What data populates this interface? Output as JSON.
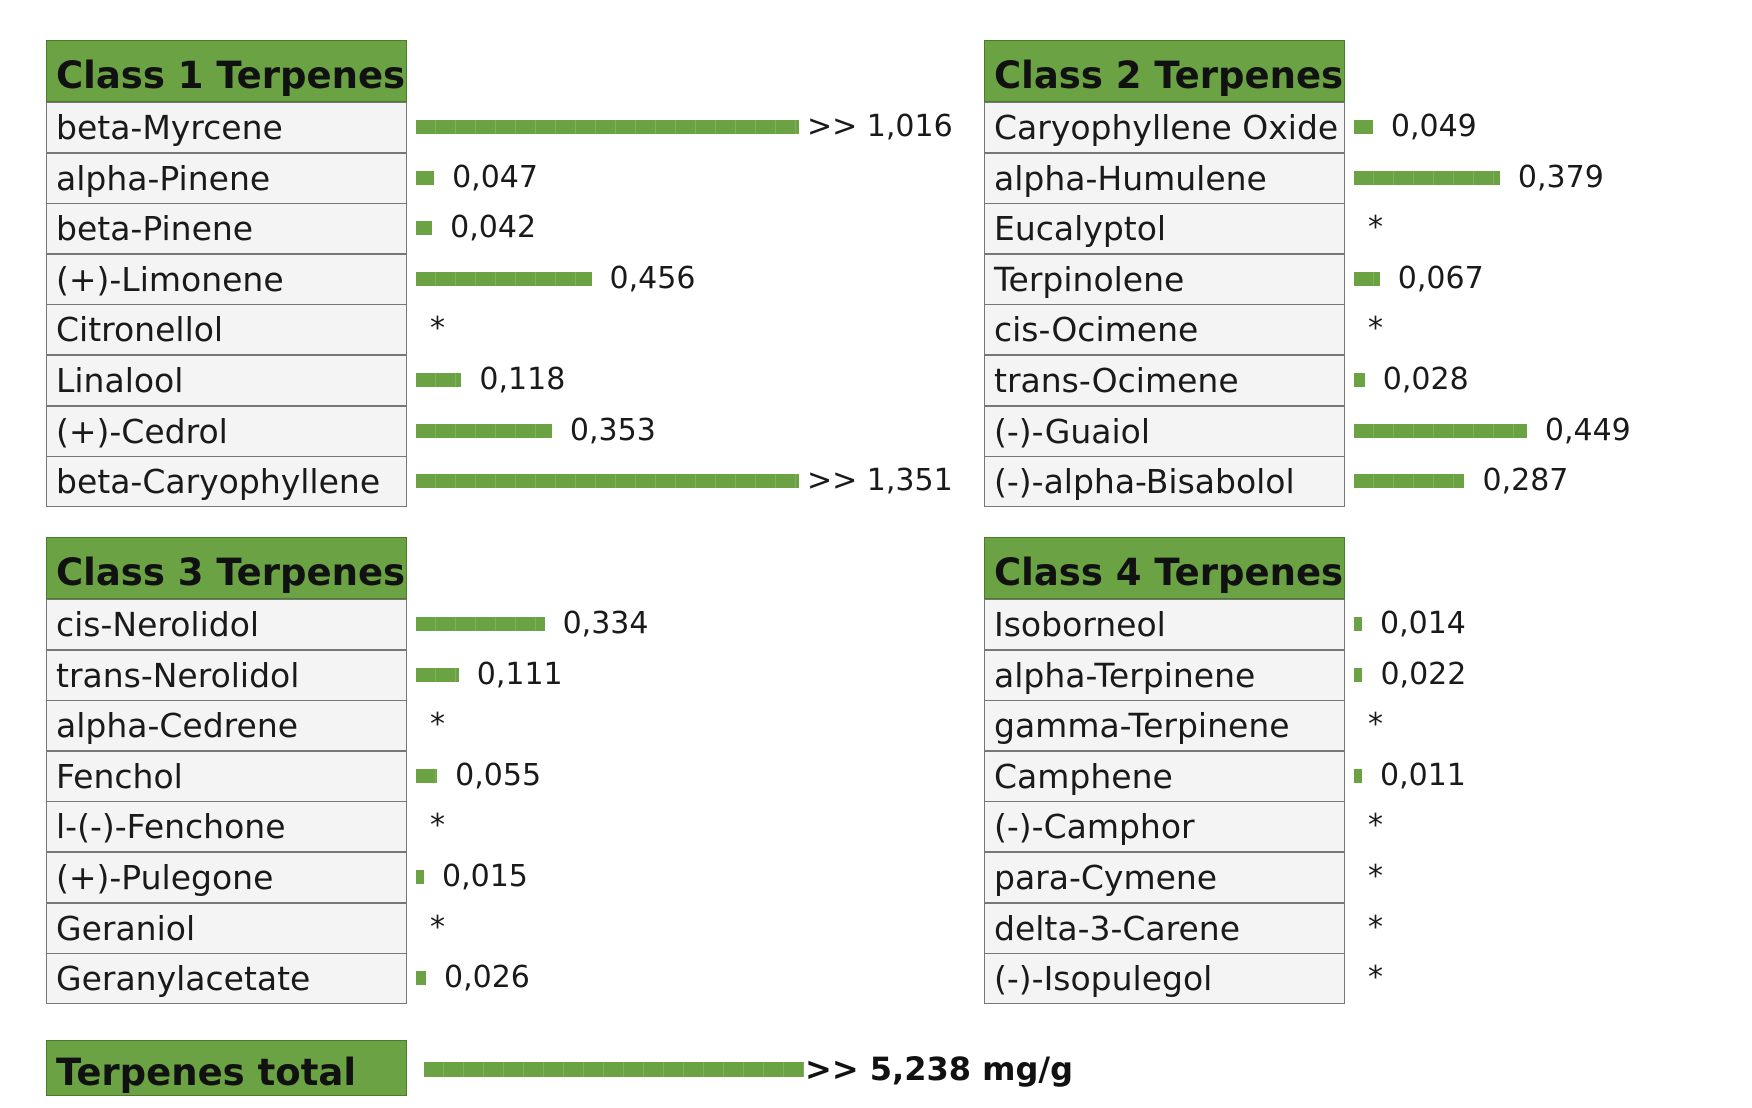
{
  "chart_data": {
    "type": "bar",
    "panels": [
      {
        "title": "Class 1 Terpenes",
        "items": [
          {
            "name": "beta-Myrcene",
            "value": 1.016,
            "label": ">> 1,016",
            "truncated": true
          },
          {
            "name": "alpha-Pinene",
            "value": 0.047,
            "label": "0,047"
          },
          {
            "name": "beta-Pinene",
            "value": 0.042,
            "label": "0,042"
          },
          {
            "name": "(+)-Limonene",
            "value": 0.456,
            "label": "0,456"
          },
          {
            "name": "Citronellol",
            "value": null,
            "label": "*"
          },
          {
            "name": "Linalool",
            "value": 0.118,
            "label": "0,118"
          },
          {
            "name": "(+)-Cedrol",
            "value": 0.353,
            "label": "0,353"
          },
          {
            "name": "beta-Caryophyllene",
            "value": 1.351,
            "label": ">> 1,351",
            "truncated": true
          }
        ]
      },
      {
        "title": "Class 2 Terpenes",
        "items": [
          {
            "name": "Caryophyllene Oxide",
            "value": 0.049,
            "label": "0,049"
          },
          {
            "name": "alpha-Humulene",
            "value": 0.379,
            "label": "0,379"
          },
          {
            "name": "Eucalyptol",
            "value": null,
            "label": "*"
          },
          {
            "name": "Terpinolene",
            "value": 0.067,
            "label": "0,067"
          },
          {
            "name": "cis-Ocimene",
            "value": null,
            "label": "*"
          },
          {
            "name": "trans-Ocimene",
            "value": 0.028,
            "label": "0,028"
          },
          {
            "name": "(-)-Guaiol",
            "value": 0.449,
            "label": "0,449"
          },
          {
            "name": "(-)-alpha-Bisabolol",
            "value": 0.287,
            "label": "0,287"
          }
        ]
      },
      {
        "title": "Class 3 Terpenes",
        "items": [
          {
            "name": "cis-Nerolidol",
            "value": 0.334,
            "label": "0,334"
          },
          {
            "name": "trans-Nerolidol",
            "value": 0.111,
            "label": "0,111"
          },
          {
            "name": "alpha-Cedrene",
            "value": null,
            "label": "*"
          },
          {
            "name": "Fenchol",
            "value": 0.055,
            "label": "0,055"
          },
          {
            "name": "l-(-)-Fenchone",
            "value": null,
            "label": "*"
          },
          {
            "name": "(+)-Pulegone",
            "value": 0.015,
            "label": "0,015"
          },
          {
            "name": "Geraniol",
            "value": null,
            "label": "*"
          },
          {
            "name": "Geranylacetate",
            "value": 0.026,
            "label": "0,026"
          }
        ]
      },
      {
        "title": "Class 4 Terpenes",
        "items": [
          {
            "name": "Isoborneol",
            "value": 0.014,
            "label": "0,014"
          },
          {
            "name": "alpha-Terpinene",
            "value": 0.022,
            "label": "0,022"
          },
          {
            "name": "gamma-Terpinene",
            "value": null,
            "label": "*"
          },
          {
            "name": "Camphene",
            "value": 0.011,
            "label": "0,011"
          },
          {
            "name": "(-)-Camphor",
            "value": null,
            "label": "*"
          },
          {
            "name": "para-Cymene",
            "value": null,
            "label": "*"
          },
          {
            "name": "delta-3-Carene",
            "value": null,
            "label": "*"
          },
          {
            "name": "(-)-Isopulegol",
            "value": null,
            "label": "*"
          }
        ]
      }
    ],
    "total": {
      "title": "Terpenes total",
      "value": 5.238,
      "label": ">> 5,238 mg/g",
      "truncated": true
    },
    "bar_color": "#6aa244",
    "header_color": "#6aa244",
    "grid": false
  }
}
